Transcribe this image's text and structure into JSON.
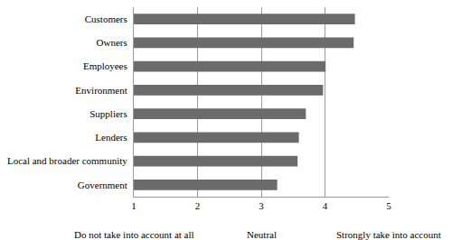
{
  "chart_data": {
    "type": "bar",
    "orientation": "horizontal",
    "categories": [
      "Customers",
      "Owners",
      "Employees",
      "Environment",
      "Suppliers",
      "Lenders",
      "Local and broader community",
      "Government"
    ],
    "values": [
      4.47,
      4.45,
      4.01,
      3.97,
      3.7,
      3.59,
      3.57,
      3.25
    ],
    "color": "#6b6b6b",
    "xlim": [
      1,
      5
    ],
    "xticks": [
      1,
      2,
      3,
      4,
      5
    ],
    "grid": true,
    "annotations": [
      {
        "x": 1,
        "text": "Do not take into account at all"
      },
      {
        "x": 3,
        "text": "Neutral"
      },
      {
        "x": 5,
        "text": "Strongly take into account"
      }
    ]
  }
}
